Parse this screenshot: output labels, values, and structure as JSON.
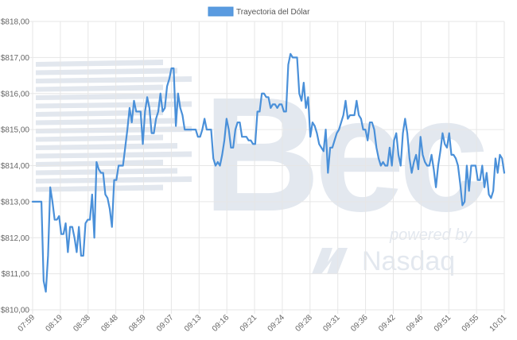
{
  "colors": {
    "line": "#4a90d9",
    "legend_fill": "#5a9be0",
    "grid": "#e6e6e6",
    "axis_text": "#666666",
    "watermark": "#e2e7ee"
  },
  "watermark": {
    "logo": "Bec",
    "tagline_1": "powered by",
    "tagline_2": "Nasdaq"
  },
  "chart_data": {
    "type": "line",
    "title": "",
    "legend": "top-center",
    "grid": true,
    "ylim": [
      810,
      818
    ],
    "y_ticks": [
      "$810,00",
      "$811,00",
      "$812,00",
      "$813,00",
      "$814,00",
      "$815,00",
      "$816,00",
      "$817,00",
      "$818,00"
    ],
    "x_ticks": [
      "07:59",
      "08:19",
      "08:38",
      "08:48",
      "08:59",
      "09:07",
      "09:13",
      "09:16",
      "09:21",
      "09:24",
      "09:28",
      "09:31",
      "09:36",
      "09:42",
      "09:46",
      "09:51",
      "09:55",
      "10:01"
    ],
    "series": [
      {
        "name": "Trayectoria del Dólar",
        "values": [
          813.0,
          813.0,
          813.0,
          813.0,
          813.0,
          810.8,
          810.5,
          811.5,
          813.4,
          813.0,
          812.5,
          812.5,
          812.6,
          812.1,
          812.1,
          812.4,
          811.6,
          812.3,
          812.3,
          812.0,
          811.6,
          812.3,
          811.5,
          811.5,
          812.4,
          812.5,
          812.5,
          813.2,
          812.0,
          814.1,
          813.9,
          813.8,
          813.8,
          813.2,
          813.1,
          812.8,
          812.3,
          813.6,
          813.6,
          814.0,
          814.0,
          814.0,
          814.5,
          815.0,
          815.6,
          815.2,
          815.8,
          815.5,
          815.5,
          815.5,
          814.6,
          815.5,
          815.9,
          815.6,
          814.9,
          814.9,
          815.3,
          815.5,
          816.0,
          815.5,
          815.6,
          816.2,
          816.4,
          816.7,
          816.7,
          815.1,
          816.0,
          815.6,
          815.4,
          815.0,
          815.0,
          815.0,
          815.0,
          815.0,
          815.0,
          814.8,
          814.8,
          815.0,
          815.3,
          815.0,
          815.0,
          815.0,
          814.2,
          814.0,
          814.1,
          814.0,
          814.3,
          814.7,
          815.3,
          815.0,
          814.5,
          814.5,
          815.0,
          815.2,
          815.2,
          814.8,
          814.8,
          814.8,
          814.7,
          814.7,
          814.6,
          814.6,
          815.5,
          815.5,
          816.0,
          816.0,
          815.9,
          815.9,
          815.6,
          815.7,
          815.7,
          815.6,
          815.7,
          815.7,
          815.5,
          815.5,
          816.8,
          817.1,
          817.0,
          817.0,
          817.0,
          816.0,
          815.8,
          816.3,
          815.6,
          815.9,
          814.8,
          815.2,
          815.1,
          814.9,
          814.6,
          814.5,
          814.4,
          815.0,
          813.8,
          814.5,
          814.5,
          814.7,
          814.9,
          815.0,
          815.2,
          815.4,
          815.8,
          815.3,
          815.4,
          815.4,
          815.4,
          815.8,
          815.4,
          815.3,
          815.0,
          815.0,
          814.7,
          815.2,
          815.2,
          815.0,
          814.5,
          814.2,
          814.0,
          814.1,
          814.0,
          814.0,
          814.5,
          814.0,
          814.7,
          814.9,
          814.3,
          814.0,
          814.9,
          815.3,
          814.9,
          814.2,
          813.8,
          814.1,
          814.3,
          813.9,
          814.8,
          814.3,
          814.1,
          814.0,
          814.0,
          814.3,
          813.9,
          813.4,
          814.0,
          814.4,
          814.9,
          814.6,
          814.5,
          814.9,
          814.3,
          814.3,
          814.2,
          814.0,
          813.5,
          812.9,
          813.0,
          814.0,
          813.3,
          814.0,
          814.0,
          814.0,
          813.6,
          813.6,
          814.0,
          813.4,
          813.8,
          813.2,
          813.1,
          813.3,
          814.2,
          813.8,
          814.3,
          814.2,
          813.8
        ]
      }
    ]
  }
}
